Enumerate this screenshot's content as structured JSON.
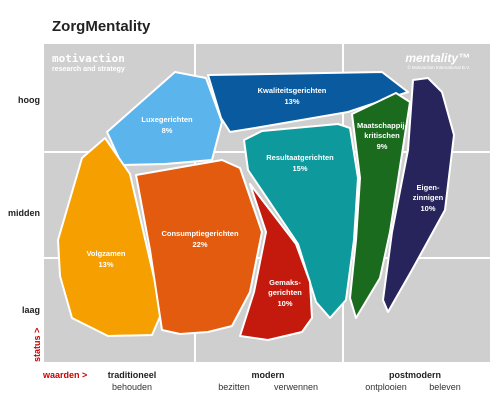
{
  "title": "ZorgMentality",
  "logos": {
    "left_main": "motivaction",
    "left_sub": "research and strategy",
    "right_main": "mentality™",
    "right_sub": "© Motivaction International B.V."
  },
  "y_axis": {
    "label": "status >",
    "levels": [
      "hoog",
      "midden",
      "laag"
    ]
  },
  "x_axis": {
    "label": "waarden >",
    "groups": [
      {
        "name": "traditioneel",
        "subs": [
          "behouden"
        ]
      },
      {
        "name": "modern",
        "subs": [
          "bezitten",
          "verwennen"
        ]
      },
      {
        "name": "postmodern",
        "subs": [
          "ontplooien",
          "beleven"
        ]
      }
    ]
  },
  "segments": [
    {
      "name": "Luxegerichten",
      "value": "8%",
      "color": "#5bb4ec"
    },
    {
      "name": "Kwaliteitsgerichten",
      "value": "13%",
      "color": "#0a5aa0"
    },
    {
      "name": "Maatschappij-kritischen",
      "value": "9%",
      "color": "#1b6b1e"
    },
    {
      "name": "Eigen-zinnigen",
      "value": "10%",
      "color": "#26245a"
    },
    {
      "name": "Volgzamen",
      "value": "13%",
      "color": "#f5a000"
    },
    {
      "name": "Consumptiegerichten",
      "value": "22%",
      "color": "#e35b0e"
    },
    {
      "name": "Resultaatgerichten",
      "value": "15%",
      "color": "#0e9a9c"
    },
    {
      "name": "Gemaks-gerichten",
      "value": "10%",
      "color": "#c41a0e"
    }
  ]
}
